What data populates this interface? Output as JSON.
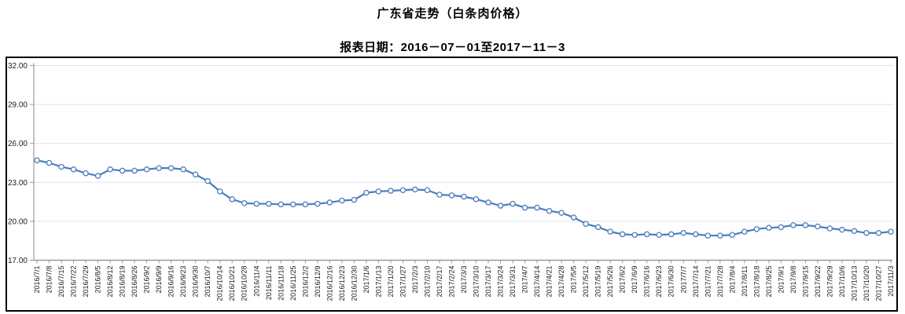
{
  "header": {
    "title": "广东省走势（白条肉价格）",
    "subtitle": "报表日期：2016－07－01至2017－11－3"
  },
  "chart_data": {
    "type": "line",
    "title": "广东省走势（白条肉价格）",
    "report_date_range": "2016－07－01至2017－11－3",
    "series_name": "白条肉价格",
    "x": [
      "2016/7/1",
      "2016/7/8",
      "2016/7/15",
      "2016/7/22",
      "2016/7/29",
      "2016/8/5",
      "2016/8/12",
      "2016/8/19",
      "2016/8/26",
      "2016/9/2",
      "2016/9/9",
      "2016/9/16",
      "2016/9/23",
      "2016/9/30",
      "2016/10/7",
      "2016/10/14",
      "2016/10/21",
      "2016/10/28",
      "2016/11/4",
      "2016/11/11",
      "2016/11/18",
      "2016/11/25",
      "2016/12/2",
      "2016/12/9",
      "2016/12/16",
      "2016/12/23",
      "2016/12/30",
      "2017/1/6",
      "2017/1/13",
      "2017/1/20",
      "2017/1/27",
      "2017/2/3",
      "2017/2/10",
      "2017/2/17",
      "2017/2/24",
      "2017/3/3",
      "2017/3/10",
      "2017/3/17",
      "2017/3/24",
      "2017/3/31",
      "2017/4/7",
      "2017/4/14",
      "2017/4/21",
      "2017/4/28",
      "2017/5/5",
      "2017/5/12",
      "2017/5/19",
      "2017/5/26",
      "2017/6/2",
      "2017/6/9",
      "2017/6/16",
      "2017/6/23",
      "2017/6/30",
      "2017/7/7",
      "2017/7/14",
      "2017/7/21",
      "2017/7/28",
      "2017/8/4",
      "2017/8/11",
      "2017/8/18",
      "2017/8/25",
      "2017/9/1",
      "2017/9/8",
      "2017/9/15",
      "2017/9/22",
      "2017/9/29",
      "2017/10/6",
      "2017/10/13",
      "2017/10/20",
      "2017/10/27",
      "2017/11/3"
    ],
    "values": [
      24.7,
      24.5,
      24.2,
      24.0,
      23.7,
      23.5,
      24.0,
      23.9,
      23.9,
      24.0,
      24.1,
      24.1,
      24.0,
      23.6,
      23.1,
      22.3,
      21.7,
      21.4,
      21.35,
      21.35,
      21.3,
      21.3,
      21.3,
      21.35,
      21.45,
      21.6,
      21.65,
      22.2,
      22.3,
      22.35,
      22.4,
      22.45,
      22.4,
      22.05,
      22.0,
      21.9,
      21.7,
      21.45,
      21.2,
      21.35,
      21.05,
      21.05,
      20.8,
      20.65,
      20.3,
      19.8,
      19.55,
      19.2,
      19.0,
      18.95,
      19.0,
      18.95,
      19.0,
      19.1,
      19.0,
      18.9,
      18.9,
      18.95,
      19.2,
      19.4,
      19.5,
      19.55,
      19.7,
      19.7,
      19.6,
      19.45,
      19.35,
      19.25,
      19.1,
      19.1,
      19.2
    ],
    "ylim": [
      17,
      32
    ],
    "yticks": [
      17,
      20,
      23,
      26,
      29,
      32
    ],
    "ytick_labels": [
      "17.00",
      "20.00",
      "23.00",
      "26.00",
      "29.00",
      "32.00"
    ],
    "grid": true,
    "legend": "none",
    "style": {
      "line_color": "#4a7ebb",
      "marker_fill": "#ffffff",
      "marker_stroke": "#4a7ebb",
      "grid_color": "#dde3ed",
      "axis_color": "#9b9b9b"
    }
  }
}
